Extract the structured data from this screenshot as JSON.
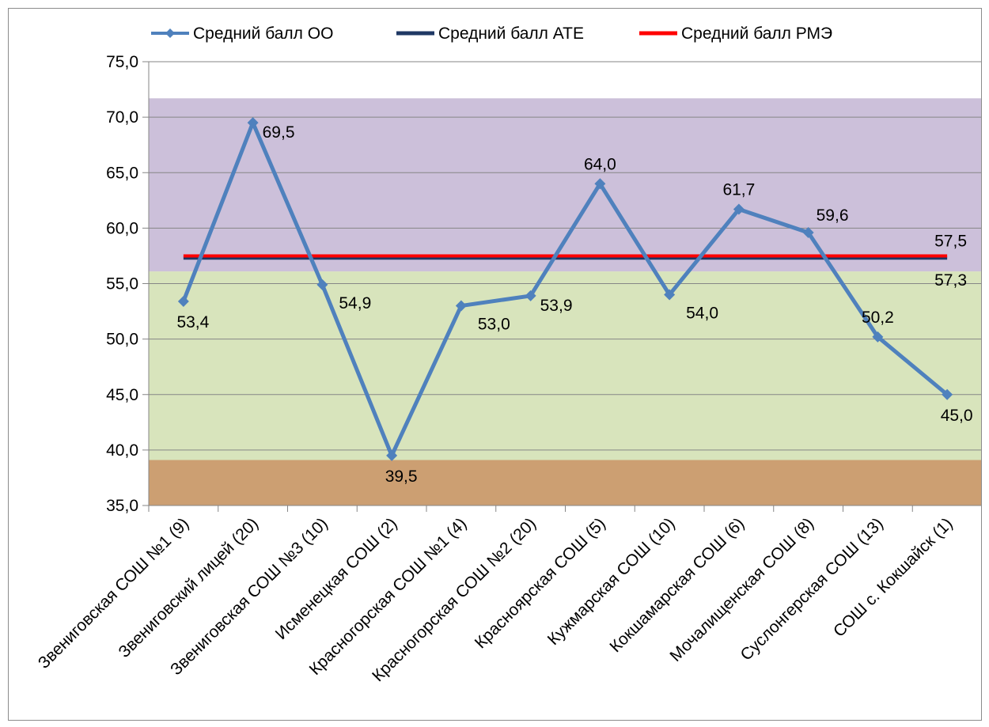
{
  "chart_data": {
    "type": "line",
    "categories": [
      "Звениговская СОШ №1 (9)",
      "Звениговский лицей (20)",
      "Звениговская СОШ №3 (10)",
      "Исменецкая СОШ (2)",
      "Красногорская СОШ №1 (4)",
      "Красногорская СОШ №2 (20)",
      "Красноярская СОШ (5)",
      "Кужмарская СОШ (10)",
      "Кокшамарская СОШ (6)",
      "Мочалищенская СОШ (8)",
      "Суслонгерская СОШ (13)",
      "СОШ с. Кокшайск (1)"
    ],
    "series": [
      {
        "name": "Средний балл ОО",
        "color": "#4f81bd",
        "marker": "diamond",
        "values": [
          53.4,
          69.5,
          54.9,
          39.5,
          53.0,
          53.9,
          64.0,
          54.0,
          61.7,
          59.6,
          50.2,
          45.0
        ],
        "labels": [
          "53,4",
          "69,5",
          "54,9",
          "39,5",
          "53,0",
          "53,9",
          "64,0",
          "54,0",
          "61,7",
          "59,6",
          "50,2",
          "45,0"
        ]
      },
      {
        "name": "Средний балл АТЕ",
        "color": "#1f3864",
        "values": [
          57.3,
          57.3,
          57.3,
          57.3,
          57.3,
          57.3,
          57.3,
          57.3,
          57.3,
          57.3,
          57.3,
          57.3
        ],
        "end_label": "57,3"
      },
      {
        "name": "Средний балл РМЭ",
        "color": "#ff0000",
        "values": [
          57.5,
          57.5,
          57.5,
          57.5,
          57.5,
          57.5,
          57.5,
          57.5,
          57.5,
          57.5,
          57.5,
          57.5
        ],
        "end_label": "57,5"
      }
    ],
    "bands": [
      {
        "from": 35.0,
        "to": 39.1,
        "color": "#cc9f72"
      },
      {
        "from": 39.1,
        "to": 56.1,
        "color": "#d8e4bc"
      },
      {
        "from": 56.1,
        "to": 71.7,
        "color": "#ccc0da"
      }
    ],
    "ylim": [
      35.0,
      75.0
    ],
    "yticks": [
      "35,0",
      "40,0",
      "45,0",
      "50,0",
      "55,0",
      "60,0",
      "65,0",
      "70,0",
      "75,0"
    ],
    "grid": true,
    "legend_position": "top",
    "xlabel": "",
    "ylabel": ""
  }
}
